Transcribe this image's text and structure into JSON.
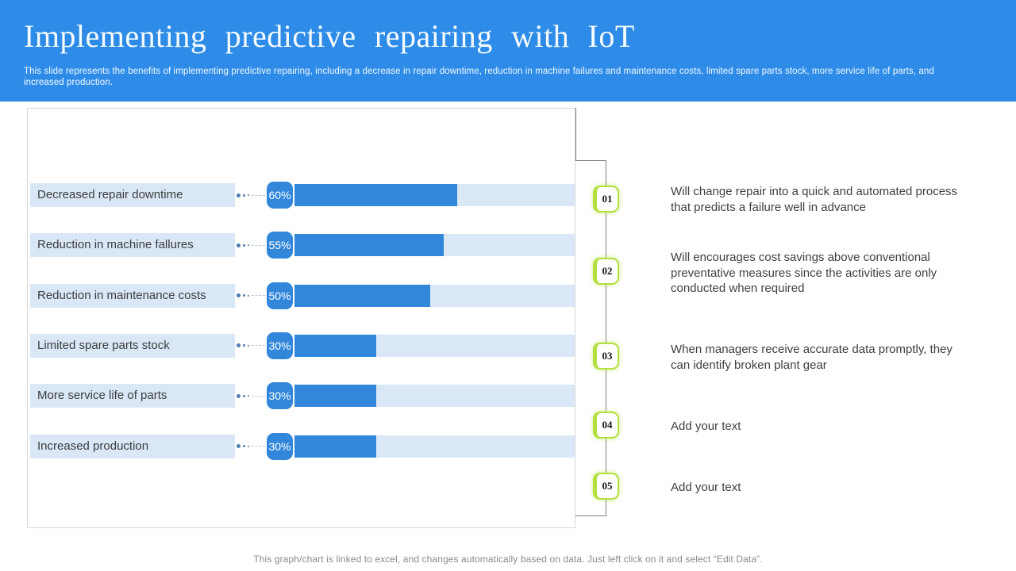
{
  "slide": {
    "title": "Implementing predictive repairing with IoT",
    "subtitle_lines": [
      "This slide represents the benefits of implementing predictive repairing, including a decrease in repair downtime, reduction in machine failures and maintenance costs, limited spare parts stock, more service life of parts, and",
      "increased production."
    ],
    "footer_note": "This graph/chart is linked to excel,  and changes automatically based on data. Just left click on it and select “Edit Data”."
  },
  "chart_data": {
    "type": "bar",
    "orientation": "horizontal",
    "title": "",
    "categories": [
      "Decreased repair downtime",
      "Reduction in machine fallures",
      "Reduction in maintenance costs",
      "Limited spare parts stock",
      "More service life of parts",
      "Increased production"
    ],
    "values": [
      60,
      55,
      50,
      30,
      30,
      30
    ],
    "value_labels": [
      "60%",
      "55%",
      "50%",
      "30%",
      "30%",
      "30%"
    ],
    "xlim": [
      0,
      100
    ],
    "grid": false,
    "legend": false,
    "bar_color": "#3287da",
    "track_color": "#d9e7f6"
  },
  "steps": [
    {
      "number": "01",
      "lines": [
        "Will change repair into a quick and automated process",
        "that predicts a failure well in advance"
      ]
    },
    {
      "number": "02",
      "lines": [
        "Will encourages cost savings above conventional",
        "preventative measures since the activities are only",
        "conducted when required"
      ]
    },
    {
      "number": "03",
      "lines": [
        "When managers receive accurate data promptly, they",
        "can identify broken plant gear"
      ]
    },
    {
      "number": "04",
      "lines": [
        "Add your text"
      ]
    },
    {
      "number": "05",
      "lines": [
        "Add your text"
      ]
    }
  ],
  "colors": {
    "header_bg": "#2e8ce8",
    "accent_blue": "#3287da",
    "light_blue": "#d9e7f6",
    "green_border": "#b2e03e",
    "text_dark": "#3f3f3f",
    "line_gray": "#7f7f7f"
  }
}
